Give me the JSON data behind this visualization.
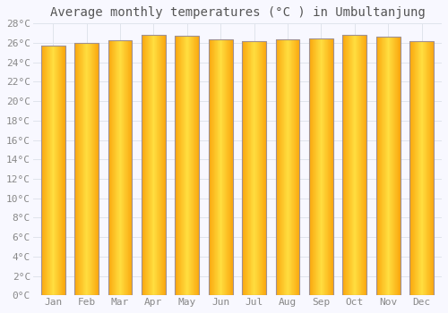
{
  "title": "Average monthly temperatures (°C ) in Umbultanjung",
  "months": [
    "Jan",
    "Feb",
    "Mar",
    "Apr",
    "May",
    "Jun",
    "Jul",
    "Aug",
    "Sep",
    "Oct",
    "Nov",
    "Dec"
  ],
  "values": [
    25.7,
    26.0,
    26.3,
    26.8,
    26.7,
    26.4,
    26.2,
    26.4,
    26.5,
    26.8,
    26.6,
    26.2
  ],
  "ylim": [
    0,
    28
  ],
  "yticks": [
    0,
    2,
    4,
    6,
    8,
    10,
    12,
    14,
    16,
    18,
    20,
    22,
    24,
    26,
    28
  ],
  "bar_color_center": "#FFD040",
  "bar_color_edge": "#F5A800",
  "bar_border_color": "#A09090",
  "background_color": "#F8F8FF",
  "grid_color": "#E0E4EC",
  "title_fontsize": 10,
  "tick_fontsize": 8
}
